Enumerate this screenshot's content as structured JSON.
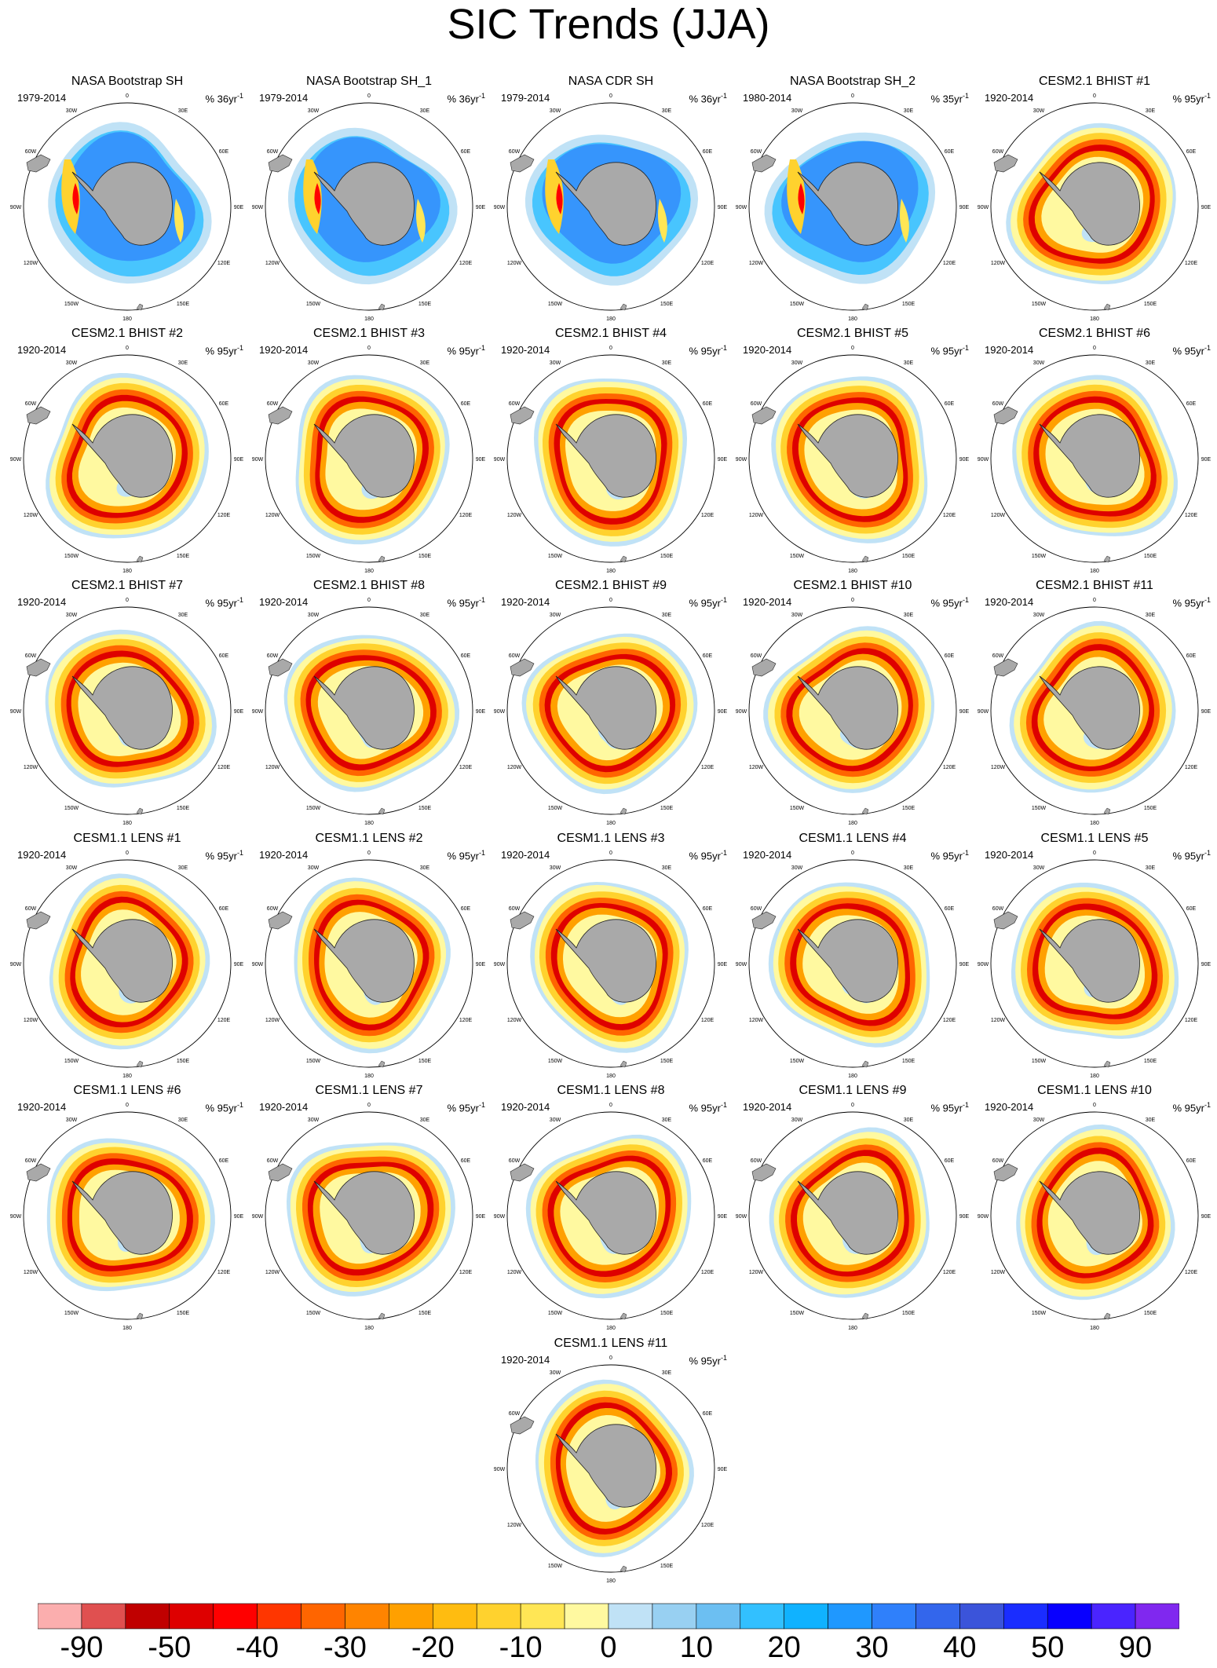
{
  "title": "SIC Trends (JJA)",
  "colors": {
    "land": "#a9a9a9",
    "bins": [
      "#fbaeae",
      "#e05050",
      "#c00000",
      "#de0000",
      "#ff0000",
      "#ff3600",
      "#ff6500",
      "#ff8400",
      "#ffa000",
      "#ffbc10",
      "#ffd22e",
      "#ffe655",
      "#fff9a0",
      "#c0e2f6",
      "#98d0f2",
      "#6cbff2",
      "#32c0ff",
      "#10b2ff",
      "#1f98ff",
      "#2f80fb",
      "#3366ec",
      "#3b54da",
      "#1a2dff",
      "#0800ff",
      "#4a24ff",
      "#8028ef"
    ]
  },
  "longitude_labels": [
    "0",
    "30E",
    "60E",
    "90E",
    "120E",
    "150E",
    "180",
    "150W",
    "120W",
    "90W",
    "60W",
    "30W"
  ],
  "colorbar_labels": [
    "-90",
    "-50",
    "-40",
    "-30",
    "-20",
    "-10",
    "0",
    "10",
    "20",
    "30",
    "40",
    "50",
    "90"
  ],
  "panels": [
    {
      "title": "NASA Bootstrap SH",
      "period": "1979-2014",
      "units": "% 36yr",
      "kind": "obs",
      "eccentric": 0.0
    },
    {
      "title": "NASA Bootstrap SH_1",
      "period": "1979-2014",
      "units": "% 36yr",
      "kind": "obs",
      "eccentric": 0.0
    },
    {
      "title": "NASA CDR SH",
      "period": "1979-2014",
      "units": "% 36yr",
      "kind": "obs",
      "eccentric": 0.0
    },
    {
      "title": "NASA Bootstrap SH_2",
      "period": "1980-2014",
      "units": "% 35yr",
      "kind": "obs",
      "eccentric": 0.0
    },
    {
      "title": "CESM2.1 BHIST #1",
      "period": "1920-2014",
      "units": "% 95yr",
      "kind": "model"
    },
    {
      "title": "CESM2.1 BHIST #2",
      "period": "1920-2014",
      "units": "% 95yr",
      "kind": "model"
    },
    {
      "title": "CESM2.1 BHIST #3",
      "period": "1920-2014",
      "units": "% 95yr",
      "kind": "model"
    },
    {
      "title": "CESM2.1 BHIST #4",
      "period": "1920-2014",
      "units": "% 95yr",
      "kind": "model"
    },
    {
      "title": "CESM2.1 BHIST #5",
      "period": "1920-2014",
      "units": "% 95yr",
      "kind": "model"
    },
    {
      "title": "CESM2.1 BHIST #6",
      "period": "1920-2014",
      "units": "% 95yr",
      "kind": "model"
    },
    {
      "title": "CESM2.1 BHIST #7",
      "period": "1920-2014",
      "units": "% 95yr",
      "kind": "model"
    },
    {
      "title": "CESM2.1 BHIST #8",
      "period": "1920-2014",
      "units": "% 95yr",
      "kind": "model"
    },
    {
      "title": "CESM2.1 BHIST #9",
      "period": "1920-2014",
      "units": "% 95yr",
      "kind": "model"
    },
    {
      "title": "CESM2.1 BHIST #10",
      "period": "1920-2014",
      "units": "% 95yr",
      "kind": "model"
    },
    {
      "title": "CESM2.1 BHIST #11",
      "period": "1920-2014",
      "units": "% 95yr",
      "kind": "model"
    },
    {
      "title": "CESM1.1 LENS #1",
      "period": "1920-2014",
      "units": "% 95yr",
      "kind": "model"
    },
    {
      "title": "CESM1.1 LENS #2",
      "period": "1920-2014",
      "units": "% 95yr",
      "kind": "model"
    },
    {
      "title": "CESM1.1 LENS #3",
      "period": "1920-2014",
      "units": "% 95yr",
      "kind": "model"
    },
    {
      "title": "CESM1.1 LENS #4",
      "period": "1920-2014",
      "units": "% 95yr",
      "kind": "model"
    },
    {
      "title": "CESM1.1 LENS #5",
      "period": "1920-2014",
      "units": "% 95yr",
      "kind": "model"
    },
    {
      "title": "CESM1.1 LENS #6",
      "period": "1920-2014",
      "units": "% 95yr",
      "kind": "model"
    },
    {
      "title": "CESM1.1 LENS #7",
      "period": "1920-2014",
      "units": "% 95yr",
      "kind": "model"
    },
    {
      "title": "CESM1.1 LENS #8",
      "period": "1920-2014",
      "units": "% 95yr",
      "kind": "model"
    },
    {
      "title": "CESM1.1 LENS #9",
      "period": "1920-2014",
      "units": "% 95yr",
      "kind": "model"
    },
    {
      "title": "CESM1.1 LENS #10",
      "period": "1920-2014",
      "units": "% 95yr",
      "kind": "model"
    },
    {
      "title": "CESM1.1 LENS #11",
      "period": "1920-2014",
      "units": "% 95yr",
      "kind": "model"
    }
  ]
}
